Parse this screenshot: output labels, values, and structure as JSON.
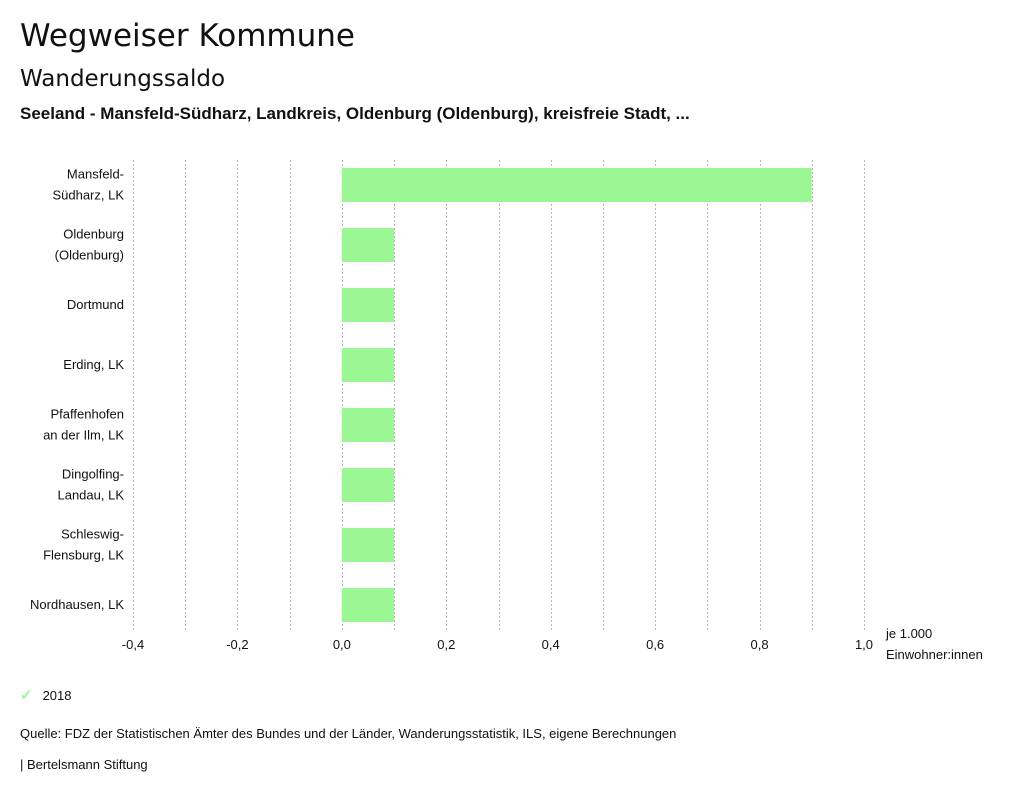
{
  "header": {
    "title": "Wegweiser Kommune",
    "subtitle": "Wanderungssaldo",
    "subheading": "Seeland - Mansfeld-Südharz, Landkreis, Oldenburg (Oldenburg), kreisfreie Stadt, ..."
  },
  "chart_data": {
    "type": "bar",
    "orientation": "horizontal",
    "categories": [
      [
        "Mansfeld-",
        "Südharz, LK"
      ],
      [
        "Oldenburg",
        "(Oldenburg)"
      ],
      [
        "Dortmund"
      ],
      [
        "Erding, LK"
      ],
      [
        "Pfaffenhofen",
        "an der Ilm, LK"
      ],
      [
        "Dingolfing-",
        "Landau, LK"
      ],
      [
        "Schleswig-",
        "Flensburg, LK"
      ],
      [
        "Nordhausen, LK"
      ]
    ],
    "series": [
      {
        "name": "2018",
        "values": [
          0.9,
          0.1,
          0.1,
          0.1,
          0.1,
          0.1,
          0.1,
          0.1
        ]
      }
    ],
    "xlim": [
      -0.4,
      1.0
    ],
    "xticks": [
      -0.4,
      -0.2,
      0.0,
      0.2,
      0.4,
      0.6,
      0.8,
      1.0
    ],
    "xtick_labels": [
      "-0,4",
      "-0,2",
      "0,0",
      "0,2",
      "0,4",
      "0,6",
      "0,8",
      "1,0"
    ],
    "xlabel": [
      "je 1.000",
      "Einwohner:innen"
    ],
    "grid": true,
    "bar_color": "#9af794"
  },
  "legend": {
    "label": "2018",
    "icon": "check-icon"
  },
  "footer": {
    "source": "Quelle: FDZ der Statistischen Ämter des Bundes und der Länder, Wanderungsstatistik, ILS, eigene Berechnungen",
    "credit": "| Bertelsmann Stiftung"
  }
}
